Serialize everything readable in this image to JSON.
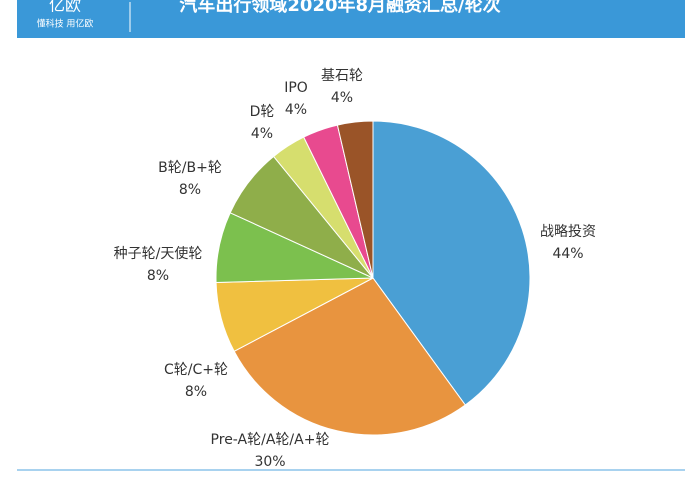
{
  "header": {
    "logo": "亿欧",
    "slogan": "懂科技 用亿欧"
  },
  "chart_data": {
    "type": "pie",
    "title": "汽车出行领域2020年8月融资汇总/轮次",
    "categories": [
      "战略投资",
      "Pre-A轮/A轮/A+轮",
      "C轮/C+轮",
      "种子轮/天使轮",
      "B轮/B+轮",
      "D轮",
      "IPO",
      "基石轮"
    ],
    "values": [
      44,
      30,
      8,
      8,
      8,
      4,
      4,
      4
    ],
    "value_labels": [
      "44%",
      "30%",
      "8%",
      "8%",
      "8%",
      "4%",
      "4%",
      "4%"
    ],
    "colors": [
      "#4a9fd4",
      "#e8943f",
      "#f0c040",
      "#7cc04e",
      "#8fae4a",
      "#d6de6e",
      "#e84a8f",
      "#9a5428"
    ]
  }
}
